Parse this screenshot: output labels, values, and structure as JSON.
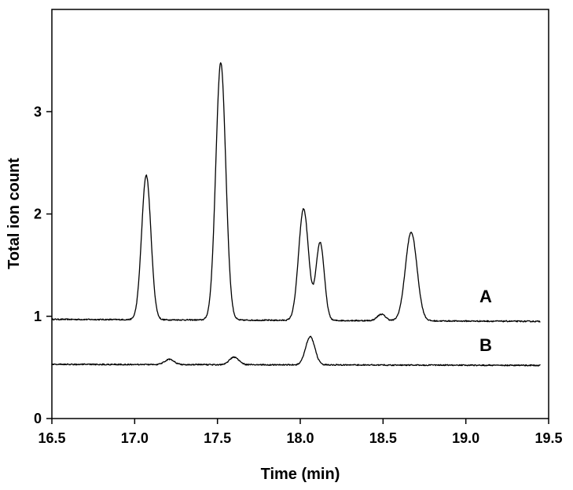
{
  "chart_data": {
    "type": "line",
    "xlabel": "Time (min)",
    "ylabel": "Total ion count",
    "xlim": [
      16.5,
      19.5
    ],
    "ylim": [
      0,
      4
    ],
    "x_ticks": [
      16.5,
      17.0,
      17.5,
      18.0,
      18.5,
      19.0,
      19.5
    ],
    "x_tick_labels": [
      "16.5",
      "17.0",
      "17.5",
      "18.0",
      "18.5",
      "19.0",
      "19.5"
    ],
    "y_ticks": [
      0,
      1,
      2,
      3
    ],
    "y_tick_labels": [
      "0",
      "1",
      "2",
      "3"
    ],
    "grid": false,
    "legend": "none",
    "line_color": "#000000",
    "series": [
      {
        "name": "A",
        "baseline": 0.97,
        "baseline_end": 0.95,
        "peaks": [
          {
            "x": 17.07,
            "y": 2.38
          },
          {
            "x": 17.52,
            "y": 3.48
          },
          {
            "x": 18.02,
            "y": 2.05
          },
          {
            "x": 18.12,
            "y": 1.72
          },
          {
            "x": 18.49,
            "y": 1.02
          },
          {
            "x": 18.67,
            "y": 1.82
          }
        ]
      },
      {
        "name": "B",
        "baseline": 0.53,
        "baseline_end": 0.52,
        "peaks": [
          {
            "x": 17.21,
            "y": 0.58
          },
          {
            "x": 17.6,
            "y": 0.6
          },
          {
            "x": 18.06,
            "y": 0.8
          }
        ]
      }
    ]
  }
}
